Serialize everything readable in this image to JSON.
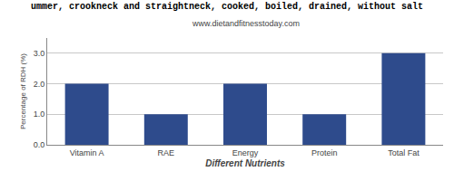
{
  "chart_data": {
    "type": "bar",
    "title": "ummer, crookneck and straightneck, cooked, boiled, drained, without salt",
    "subtitle": "www.dietandfitnesstoday.com",
    "categories": [
      "Vitamin A",
      "RAE",
      "Energy",
      "Protein",
      "Total Fat"
    ],
    "values": [
      2.0,
      1.0,
      2.0,
      1.0,
      3.0
    ],
    "color": "#2e4b8c",
    "xlabel": "Different Nutrients",
    "ylabel": "Percentage of RDH (%)",
    "ylim": [
      0,
      3.5
    ],
    "yticks": [
      {
        "value": 0.0,
        "label": "0.0"
      },
      {
        "value": 1.0,
        "label": "1.0"
      },
      {
        "value": 2.0,
        "label": "2.0"
      },
      {
        "value": 3.0,
        "label": "3.0"
      }
    ],
    "grid": true
  }
}
